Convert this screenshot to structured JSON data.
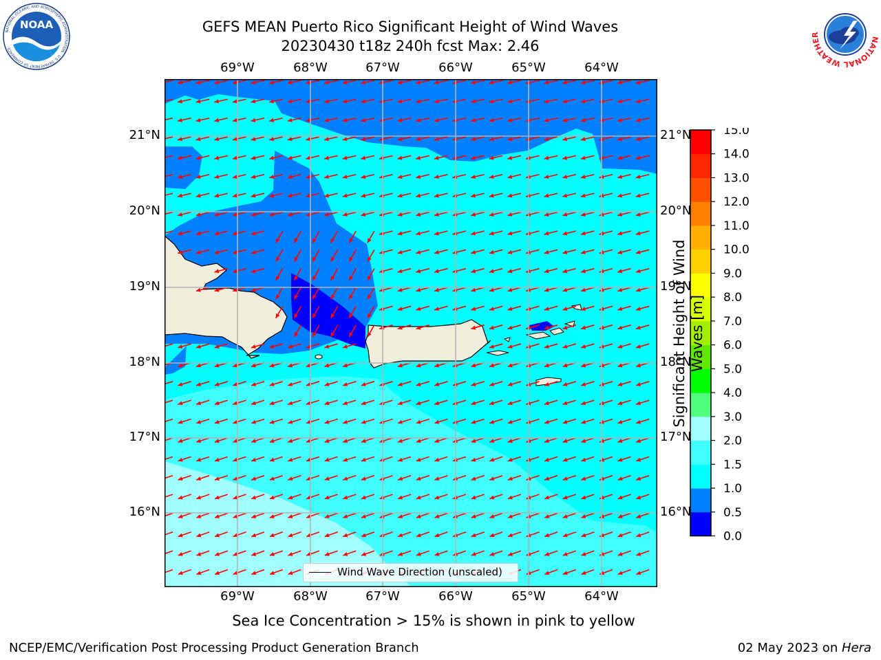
{
  "title": {
    "line1": "GEFS MEAN Puerto Rico Significant Height of Wind Waves",
    "line2": "20230430 t18z 240h fcst   Max: 2.46"
  },
  "logos": {
    "noaa_text": "NOAA",
    "noaa_ring": "NATIONAL OCEANIC AND ATMOSPHERIC ADMINISTRATION · U.S. DEPARTMENT OF COMMERCE",
    "nws_ring": "NATIONAL WEATHER SERVICE"
  },
  "axes": {
    "lon_labels": [
      "69°W",
      "68°W",
      "67°W",
      "66°W",
      "65°W",
      "64°W"
    ],
    "lat_labels": [
      "21°N",
      "20°N",
      "19°N",
      "18°N",
      "17°N",
      "16°N"
    ],
    "lon_range": [
      -70.0,
      -63.25
    ],
    "lat_range": [
      15.0,
      21.75
    ],
    "grid": true
  },
  "legend": {
    "label": "Wind Wave Direction (unscaled)"
  },
  "colorbar": {
    "title": "Significant Height of Wind Waves [m]",
    "ticks": [
      "0.0",
      "0.5",
      "1.0",
      "1.5",
      "2.0",
      "3.0",
      "4.0",
      "5.0",
      "6.0",
      "7.0",
      "8.0",
      "9.0",
      "10.0",
      "11.0",
      "12.0",
      "13.0",
      "14.0",
      "15.0"
    ],
    "colors": [
      "#0000ff",
      "#0080ff",
      "#00ffff",
      "#40ffff",
      "#a0ffff",
      "#50ff80",
      "#00ff00",
      "#60e800",
      "#a0f000",
      "#d8ff00",
      "#ffff00",
      "#ffd000",
      "#ffb000",
      "#ff8000",
      "#ff5000",
      "#ff2800",
      "#ff0000"
    ]
  },
  "map_colors": {
    "band_0_0_5": "#0000ff",
    "band_0_5_1_0": "#0080ff",
    "band_1_0_1_5": "#00ffff",
    "band_1_5_2_0": "#40ffff",
    "band_2_0_3_0": "#a0ffff",
    "land": "#efeedc",
    "arrows": "#ff0000"
  },
  "sea_ice_note": "Sea Ice Concentration > 15% is shown in pink to yellow",
  "footer": {
    "left": "NCEP/EMC/Verification Post Processing Product Generation Branch",
    "date": "02 May 2023 on ",
    "machine": "Hera"
  }
}
